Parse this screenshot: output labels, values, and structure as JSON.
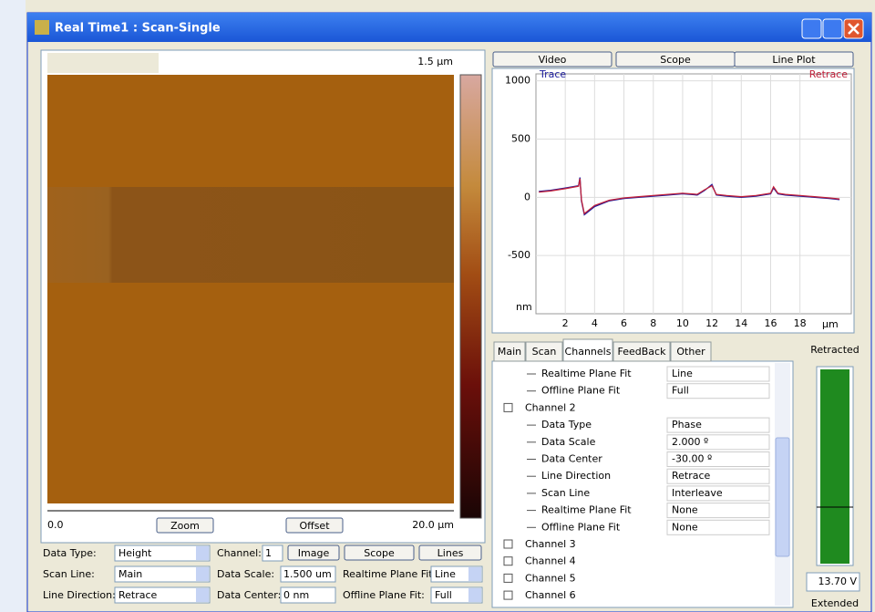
{
  "window": {
    "title": "Real Time1 : Scan-Single"
  },
  "image_panel": {
    "scale_max": "1.5 µm",
    "x_start": "0.0",
    "x_end": "20.0 µm",
    "buttons": [
      "Zoom",
      "Offset"
    ]
  },
  "controls": {
    "left": [
      {
        "label": "Data Type:",
        "value": "Height"
      },
      {
        "label": "Scan Line:",
        "value": "Main"
      },
      {
        "label": "Line Direction:",
        "value": "Retrace"
      }
    ],
    "middle": [
      {
        "label": "Channel:",
        "value": "1"
      },
      {
        "label": "Data Scale:",
        "value": "1.500 um"
      },
      {
        "label": "Data Center:",
        "value": "0 nm"
      }
    ],
    "buttons": [
      "Image",
      "Scope",
      "Lines"
    ],
    "right": [
      {
        "label": "Realtime Plane Fit:",
        "value": "Line"
      },
      {
        "label": "Offline Plane Fit:",
        "value": "Full"
      }
    ]
  },
  "view_buttons": [
    "Video",
    "Scope",
    "Line Plot"
  ],
  "chart_data": {
    "type": "line",
    "x": [
      0.2,
      1,
      2,
      2.9,
      3.0,
      3.1,
      3.3,
      4,
      5,
      6,
      7,
      8,
      9,
      10,
      11,
      11.5,
      12,
      12.3,
      13,
      14,
      15,
      16,
      16.2,
      16.5,
      17,
      18,
      19,
      20,
      20.7
    ],
    "series": [
      {
        "name": "Trace",
        "color": "#1a1a9c",
        "values": [
          50,
          60,
          80,
          100,
          170,
          -30,
          -150,
          -80,
          -30,
          -10,
          0,
          10,
          20,
          30,
          20,
          60,
          110,
          20,
          10,
          0,
          10,
          30,
          80,
          30,
          20,
          10,
          0,
          -10,
          -20
        ]
      },
      {
        "name": "Retrace",
        "color": "#c0203a",
        "values": [
          45,
          55,
          75,
          95,
          160,
          -20,
          -140,
          -70,
          -25,
          -5,
          5,
          15,
          25,
          35,
          25,
          65,
          100,
          25,
          15,
          5,
          15,
          35,
          90,
          35,
          25,
          15,
          5,
          -5,
          -15
        ]
      }
    ],
    "xlim": [
      0,
      21.5
    ],
    "ylim": [
      -1000,
      1060
    ],
    "xticks": [
      2,
      4,
      6,
      8,
      10,
      12,
      14,
      16,
      18
    ],
    "yticks": [
      1000,
      500,
      0,
      -500
    ],
    "x_label": "µm",
    "y_label": "nm",
    "grid": true
  },
  "tabs": [
    "Main",
    "Scan",
    "Channels",
    "FeedBack",
    "Other"
  ],
  "tree": [
    {
      "label": "Realtime Plane Fit",
      "value": "Line"
    },
    {
      "label": "Offline Plane Fit",
      "value": "Full"
    },
    {
      "group": "Channel 2"
    },
    {
      "label": "Data Type",
      "value": "Phase"
    },
    {
      "label": "Data Scale",
      "value": "2.000 º"
    },
    {
      "label": "Data Center",
      "value": "-30.00 º"
    },
    {
      "label": "Line Direction",
      "value": "Retrace"
    },
    {
      "label": "Scan Line",
      "value": "Interleave"
    },
    {
      "label": "Realtime Plane Fit",
      "value": "None"
    },
    {
      "label": "Offline Plane Fit",
      "value": "None"
    },
    {
      "group": "Channel 3"
    },
    {
      "group": "Channel 4"
    },
    {
      "group": "Channel 5"
    },
    {
      "group": "Channel 6"
    }
  ],
  "gauge": {
    "top": "Retracted",
    "reading": "13.70 V",
    "bottom": "Extended"
  }
}
